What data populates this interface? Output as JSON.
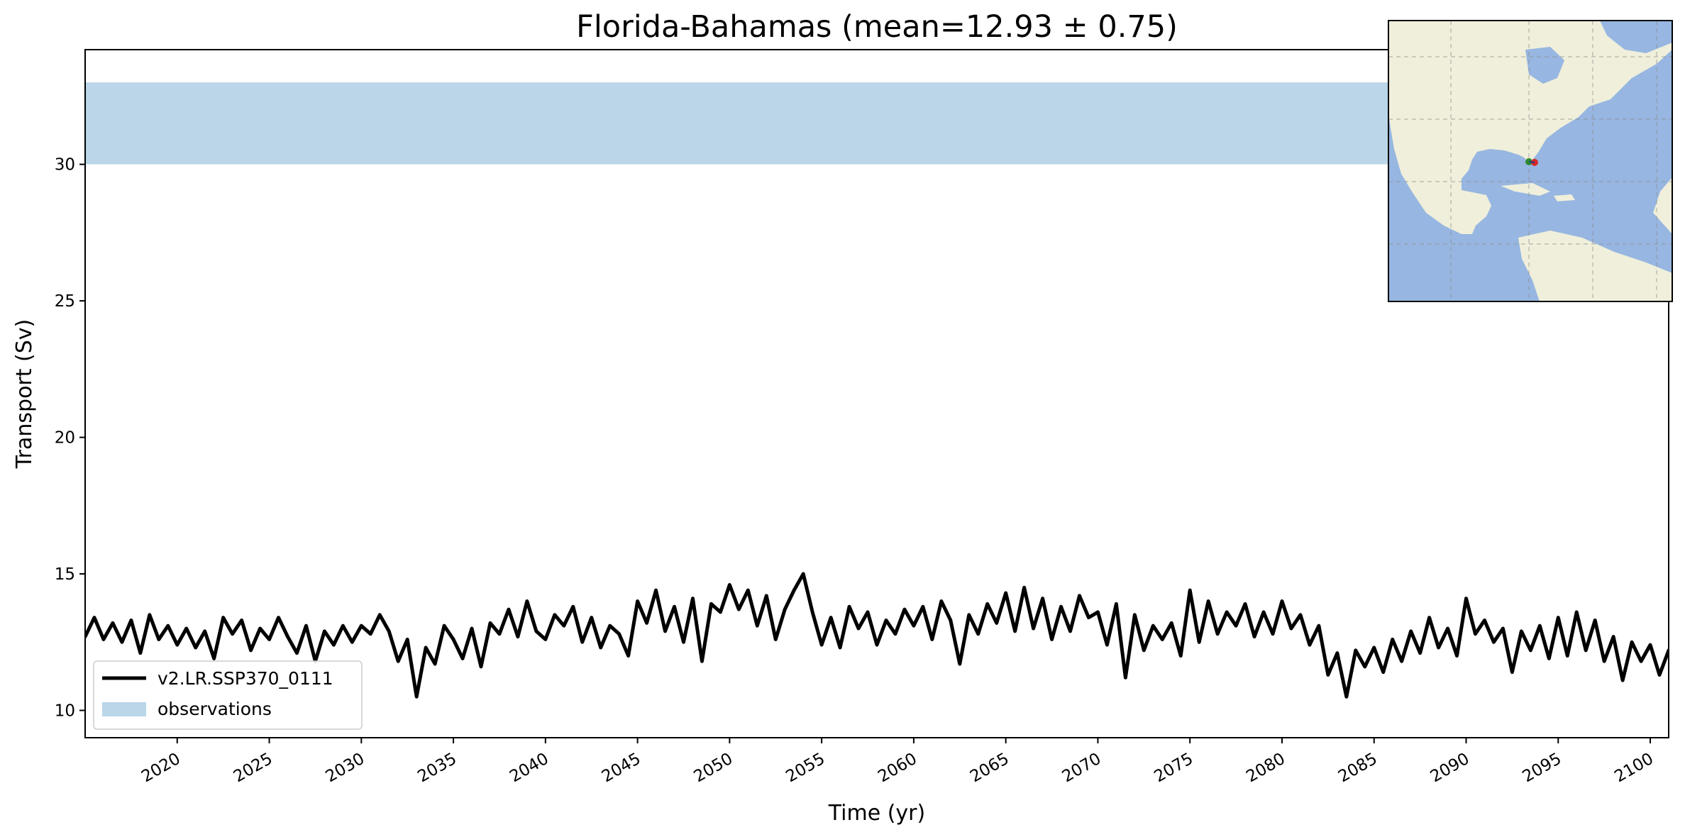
{
  "chart_data": {
    "type": "line",
    "title": "Florida-Bahamas (mean=12.93 ± 0.75)",
    "xlabel": "Time (yr)",
    "ylabel": "Transport (Sv)",
    "xlim": [
      2015,
      2101
    ],
    "ylim": [
      9,
      34.2
    ],
    "xticks": [
      "2020",
      "2025",
      "2030",
      "2035",
      "2040",
      "2045",
      "2050",
      "2055",
      "2060",
      "2065",
      "2070",
      "2075",
      "2080",
      "2085",
      "2090",
      "2095",
      "2100"
    ],
    "yticks": [
      "10",
      "15",
      "20",
      "25",
      "30"
    ],
    "grid": false,
    "legend": {
      "placement": "lower-left",
      "entries": [
        "v2.LR.SSP370_0111",
        "observations"
      ]
    },
    "observations": {
      "name": "observations",
      "range": [
        30,
        33
      ],
      "color": "#bad6e8"
    },
    "series": [
      {
        "name": "v2.LR.SSP370_0111",
        "color": "#000000",
        "x": [
          2015.0,
          2015.5,
          2016.0,
          2016.5,
          2017.0,
          2017.5,
          2018.0,
          2018.5,
          2019.0,
          2019.5,
          2020.0,
          2020.5,
          2021.0,
          2021.5,
          2022.0,
          2022.5,
          2023.0,
          2023.5,
          2024.0,
          2024.5,
          2025.0,
          2025.5,
          2026.0,
          2026.5,
          2027.0,
          2027.5,
          2028.0,
          2028.5,
          2029.0,
          2029.5,
          2030.0,
          2030.5,
          2031.0,
          2031.5,
          2032.0,
          2032.5,
          2033.0,
          2033.5,
          2034.0,
          2034.5,
          2035.0,
          2035.5,
          2036.0,
          2036.5,
          2037.0,
          2037.5,
          2038.0,
          2038.5,
          2039.0,
          2039.5,
          2040.0,
          2040.5,
          2041.0,
          2041.5,
          2042.0,
          2042.5,
          2043.0,
          2043.5,
          2044.0,
          2044.5,
          2045.0,
          2045.5,
          2046.0,
          2046.5,
          2047.0,
          2047.5,
          2048.0,
          2048.5,
          2049.0,
          2049.5,
          2050.0,
          2050.5,
          2051.0,
          2051.5,
          2052.0,
          2052.5,
          2053.0,
          2053.5,
          2054.0,
          2054.5,
          2055.0,
          2055.5,
          2056.0,
          2056.5,
          2057.0,
          2057.5,
          2058.0,
          2058.5,
          2059.0,
          2059.5,
          2060.0,
          2060.5,
          2061.0,
          2061.5,
          2062.0,
          2062.5,
          2063.0,
          2063.5,
          2064.0,
          2064.5,
          2065.0,
          2065.5,
          2066.0,
          2066.5,
          2067.0,
          2067.5,
          2068.0,
          2068.5,
          2069.0,
          2069.5,
          2070.0,
          2070.5,
          2071.0,
          2071.5,
          2072.0,
          2072.5,
          2073.0,
          2073.5,
          2074.0,
          2074.5,
          2075.0,
          2075.5,
          2076.0,
          2076.5,
          2077.0,
          2077.5,
          2078.0,
          2078.5,
          2079.0,
          2079.5,
          2080.0,
          2080.5,
          2081.0,
          2081.5,
          2082.0,
          2082.5,
          2083.0,
          2083.5,
          2084.0,
          2084.5,
          2085.0,
          2085.5,
          2086.0,
          2086.5,
          2087.0,
          2087.5,
          2088.0,
          2088.5,
          2089.0,
          2089.5,
          2090.0,
          2090.5,
          2091.0,
          2091.5,
          2092.0,
          2092.5,
          2093.0,
          2093.5,
          2094.0,
          2094.5,
          2095.0,
          2095.5,
          2096.0,
          2096.5,
          2097.0,
          2097.5,
          2098.0,
          2098.5,
          2099.0,
          2099.5,
          2100.0,
          2100.5,
          2101.0
        ],
        "values": [
          12.7,
          13.4,
          12.6,
          13.2,
          12.5,
          13.3,
          12.1,
          13.5,
          12.6,
          13.1,
          12.4,
          13.0,
          12.3,
          12.9,
          11.9,
          13.4,
          12.8,
          13.3,
          12.2,
          13.0,
          12.6,
          13.4,
          12.7,
          12.1,
          13.1,
          11.8,
          12.9,
          12.4,
          13.1,
          12.5,
          13.1,
          12.8,
          13.5,
          12.9,
          11.8,
          12.6,
          10.5,
          12.3,
          11.7,
          13.1,
          12.6,
          11.9,
          13.0,
          11.6,
          13.2,
          12.8,
          13.7,
          12.7,
          14.0,
          12.9,
          12.6,
          13.5,
          13.1,
          13.8,
          12.5,
          13.4,
          12.3,
          13.1,
          12.8,
          12.0,
          14.0,
          13.2,
          14.4,
          12.9,
          13.8,
          12.5,
          14.1,
          11.8,
          13.9,
          13.6,
          14.6,
          13.7,
          14.4,
          13.1,
          14.2,
          12.6,
          13.7,
          14.4,
          15.0,
          13.6,
          12.4,
          13.4,
          12.3,
          13.8,
          13.0,
          13.6,
          12.4,
          13.3,
          12.8,
          13.7,
          13.1,
          13.8,
          12.6,
          14.0,
          13.3,
          11.7,
          13.5,
          12.8,
          13.9,
          13.2,
          14.3,
          12.9,
          14.5,
          13.0,
          14.1,
          12.6,
          13.8,
          12.9,
          14.2,
          13.4,
          13.6,
          12.4,
          13.9,
          11.2,
          13.5,
          12.2,
          13.1,
          12.6,
          13.2,
          12.0,
          14.4,
          12.5,
          14.0,
          12.8,
          13.6,
          13.1,
          13.9,
          12.7,
          13.6,
          12.8,
          14.0,
          13.0,
          13.5,
          12.4,
          13.1,
          11.3,
          12.1,
          10.5,
          12.2,
          11.6,
          12.3,
          11.4,
          12.6,
          11.8,
          12.9,
          12.1,
          13.4,
          12.3,
          13.0,
          12.0,
          14.1,
          12.8,
          13.3,
          12.5,
          13.0,
          11.4,
          12.9,
          12.2,
          13.1,
          11.9,
          13.4,
          12.0,
          13.6,
          12.2,
          13.3,
          11.8,
          12.7,
          11.1,
          12.5,
          11.8,
          12.4,
          11.3,
          12.2
        ]
      }
    ]
  },
  "inset_map": {
    "name": "section-location-map",
    "ocean_color": "#97b6e1",
    "land_color": "#efefdb",
    "markers": [
      "start-point",
      "end-point"
    ],
    "marker_colors": [
      "#2f8c2f",
      "#d62728"
    ]
  }
}
